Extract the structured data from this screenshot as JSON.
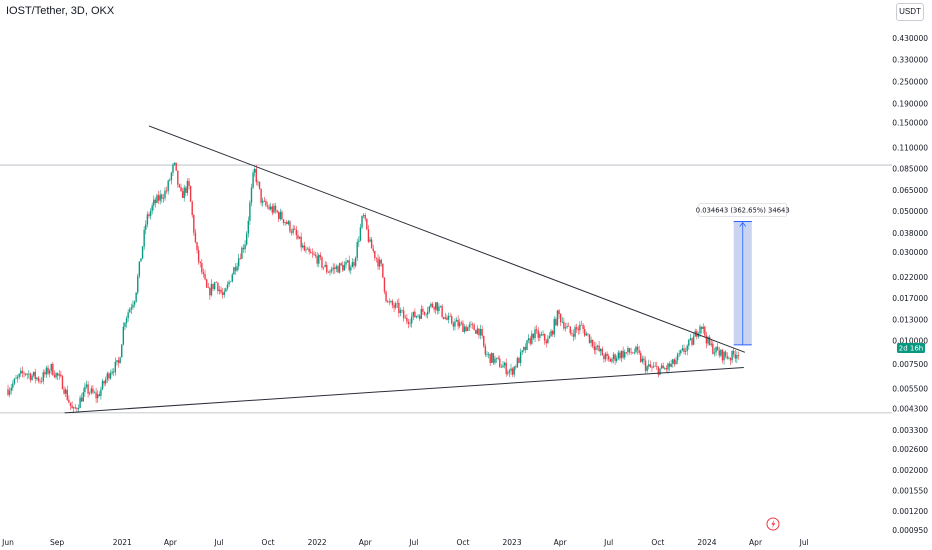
{
  "header": {
    "symbol": "IOST/Tether, 3D, OKX",
    "currency_button": "USDT"
  },
  "last_price_badge": "2d 16h",
  "measure_label": "0.034643 (362.65%) 34643",
  "colors": {
    "up": "#089981",
    "down": "#f23645",
    "trendline": "#2a2e39",
    "measure_fill": "#b5c6eb",
    "measure_border": "#2962ff",
    "badge": "#089981",
    "hline": "#b2b5be"
  },
  "icons": {
    "event_marker": "flash-icon"
  },
  "chart_data": {
    "type": "candlestick",
    "x_ticks": [
      "Jun",
      "Sep",
      "2021",
      "Apr",
      "Jul",
      "Oct",
      "2022",
      "Apr",
      "Jul",
      "Oct",
      "2023",
      "Apr",
      "Jul",
      "Oct",
      "2024",
      "Apr",
      "Jul"
    ],
    "y_ticks": [
      0.43,
      0.33,
      0.25,
      0.19,
      0.15,
      0.11,
      0.085,
      0.065,
      0.05,
      0.038,
      0.03,
      0.022,
      0.017,
      0.013,
      0.01,
      0.0075,
      0.0055,
      0.0043,
      0.0033,
      0.0026,
      0.002,
      0.00155,
      0.0012,
      0.00095
    ],
    "y_tick_labels": [
      "0.430000",
      "0.330000",
      "0.250000",
      "0.190000",
      "0.150000",
      "0.110000",
      "0.085000",
      "0.065000",
      "0.050000",
      "0.038000",
      "0.030000",
      "0.022000",
      "0.017000",
      "0.013000",
      "0.010000",
      "0.007500",
      "0.005500",
      "0.004300",
      "0.003300",
      "0.002600",
      "0.002000",
      "0.001550",
      "0.001200",
      "0.000950"
    ],
    "y_scale": "log",
    "last_price": 0.00885,
    "horizontal_lines": [
      0.0892,
      0.0041
    ],
    "price_path": [
      [
        "2020-06-01",
        0.0055
      ],
      [
        "2020-07-01",
        0.0068
      ],
      [
        "2020-08-01",
        0.0062
      ],
      [
        "2020-08-20",
        0.0072
      ],
      [
        "2020-09-10",
        0.006
      ],
      [
        "2020-10-01",
        0.0041
      ],
      [
        "2020-10-25",
        0.0055
      ],
      [
        "2020-11-15",
        0.005
      ],
      [
        "2020-12-10",
        0.007
      ],
      [
        "2020-12-25",
        0.0075
      ],
      [
        "2021-01-05",
        0.013
      ],
      [
        "2021-01-25",
        0.0175
      ],
      [
        "2021-02-15",
        0.045
      ],
      [
        "2021-03-01",
        0.055
      ],
      [
        "2021-03-25",
        0.065
      ],
      [
        "2021-04-08",
        0.09
      ],
      [
        "2021-04-20",
        0.06
      ],
      [
        "2021-05-05",
        0.07
      ],
      [
        "2021-05-20",
        0.03
      ],
      [
        "2021-06-10",
        0.018
      ],
      [
        "2021-06-25",
        0.021
      ],
      [
        "2021-07-10",
        0.017
      ],
      [
        "2021-07-25",
        0.023
      ],
      [
        "2021-08-20",
        0.035
      ],
      [
        "2021-09-05",
        0.085
      ],
      [
        "2021-09-20",
        0.055
      ],
      [
        "2021-10-15",
        0.05
      ],
      [
        "2021-11-01",
        0.045
      ],
      [
        "2021-11-20",
        0.038
      ],
      [
        "2021-12-10",
        0.03
      ],
      [
        "2022-01-01",
        0.028
      ],
      [
        "2022-01-20",
        0.024
      ],
      [
        "2022-02-10",
        0.025
      ],
      [
        "2022-03-10",
        0.026
      ],
      [
        "2022-03-28",
        0.048
      ],
      [
        "2022-04-10",
        0.033
      ],
      [
        "2022-05-01",
        0.025
      ],
      [
        "2022-05-12",
        0.016
      ],
      [
        "2022-06-01",
        0.015
      ],
      [
        "2022-06-15",
        0.013
      ],
      [
        "2022-07-10",
        0.014
      ],
      [
        "2022-08-10",
        0.016
      ],
      [
        "2022-09-01",
        0.013
      ],
      [
        "2022-10-01",
        0.012
      ],
      [
        "2022-11-01",
        0.0115
      ],
      [
        "2022-11-12",
        0.0085
      ],
      [
        "2022-12-10",
        0.0075
      ],
      [
        "2022-12-30",
        0.0068
      ],
      [
        "2023-01-20",
        0.0085
      ],
      [
        "2023-02-10",
        0.011
      ],
      [
        "2023-03-10",
        0.01
      ],
      [
        "2023-03-28",
        0.014
      ],
      [
        "2023-04-20",
        0.011
      ],
      [
        "2023-05-10",
        0.012
      ],
      [
        "2023-06-10",
        0.009
      ],
      [
        "2023-07-01",
        0.0078
      ],
      [
        "2023-07-20",
        0.0085
      ],
      [
        "2023-08-20",
        0.0088
      ],
      [
        "2023-09-10",
        0.0072
      ],
      [
        "2023-10-10",
        0.007
      ],
      [
        "2023-10-30",
        0.0075
      ],
      [
        "2023-11-20",
        0.009
      ],
      [
        "2023-12-05",
        0.01
      ],
      [
        "2023-12-20",
        0.0125
      ],
      [
        "2024-01-05",
        0.0095
      ],
      [
        "2024-01-25",
        0.0085
      ],
      [
        "2024-02-15",
        0.0082
      ],
      [
        "2024-03-01",
        0.00885
      ]
    ],
    "trendlines": [
      {
        "from": [
          "2021-02-20",
          0.145
        ],
        "to": [
          "2024-03-12",
          0.0087
        ]
      },
      {
        "from": [
          "2020-09-15",
          0.0041
        ],
        "to": [
          "2024-03-10",
          0.0072
        ]
      }
    ],
    "measure": {
      "from_date": "2024-02-20",
      "to_date": "2024-03-25",
      "low": 0.00955,
      "high": 0.0442
    }
  }
}
